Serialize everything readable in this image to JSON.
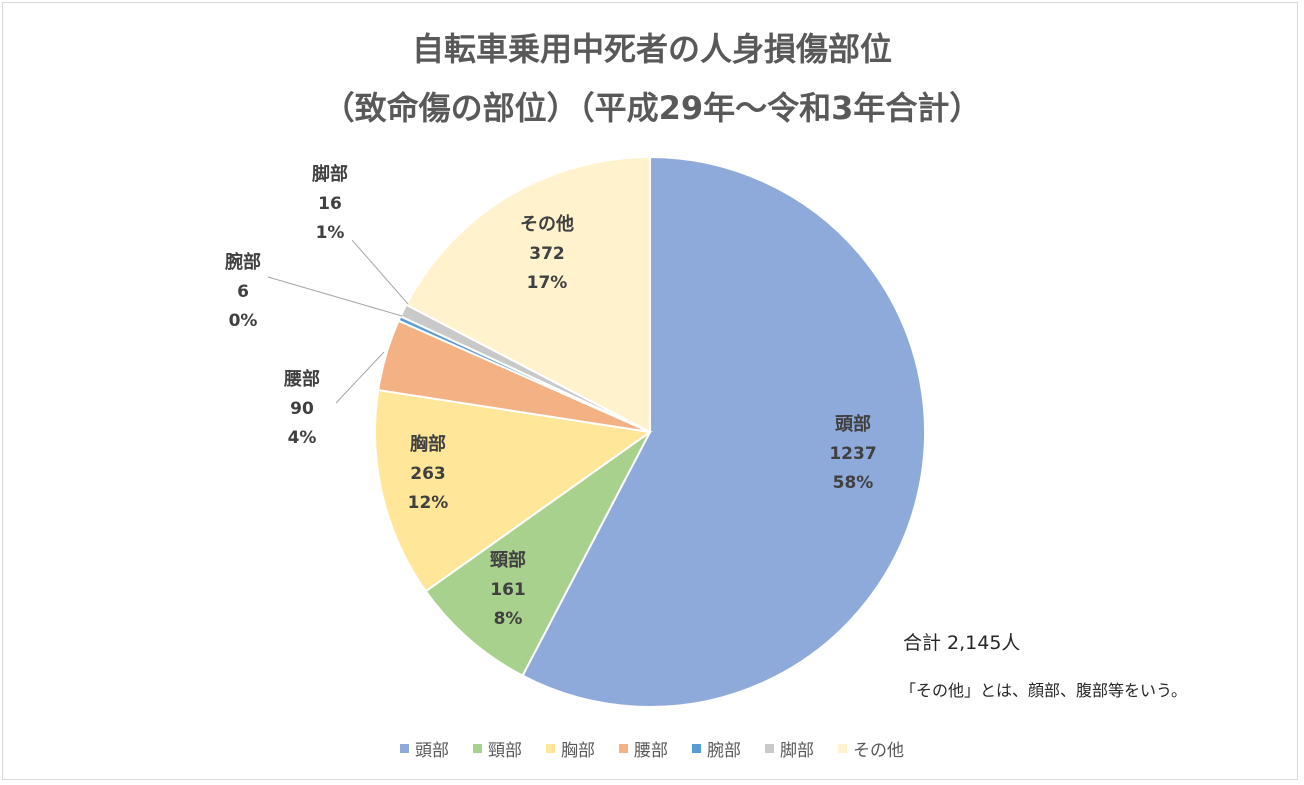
{
  "chart_data": {
    "type": "pie",
    "title": "自転車乗用中死者の人身損傷部位",
    "subtitle": "（致命傷の部位）（平成29年～令和3年合計）",
    "total_label": "合計 2,145人",
    "footnote": "「その他」とは、顔部、腹部等をいう。",
    "legend_position": "bottom",
    "slices": [
      {
        "label": "頭部",
        "value": 1237,
        "percent": "58%",
        "color": "#8eaadb"
      },
      {
        "label": "頸部",
        "value": 161,
        "percent": "8%",
        "color": "#a9d18e"
      },
      {
        "label": "胸部",
        "value": 263,
        "percent": "12%",
        "color": "#ffe699"
      },
      {
        "label": "腰部",
        "value": 90,
        "percent": "4%",
        "color": "#f4b183"
      },
      {
        "label": "腕部",
        "value": 6,
        "percent": "0%",
        "color": "#5b9bd5"
      },
      {
        "label": "脚部",
        "value": 16,
        "percent": "1%",
        "color": "#c9c9c9"
      },
      {
        "label": "その他",
        "value": 372,
        "percent": "17%",
        "color": "#fff2cc"
      }
    ]
  }
}
